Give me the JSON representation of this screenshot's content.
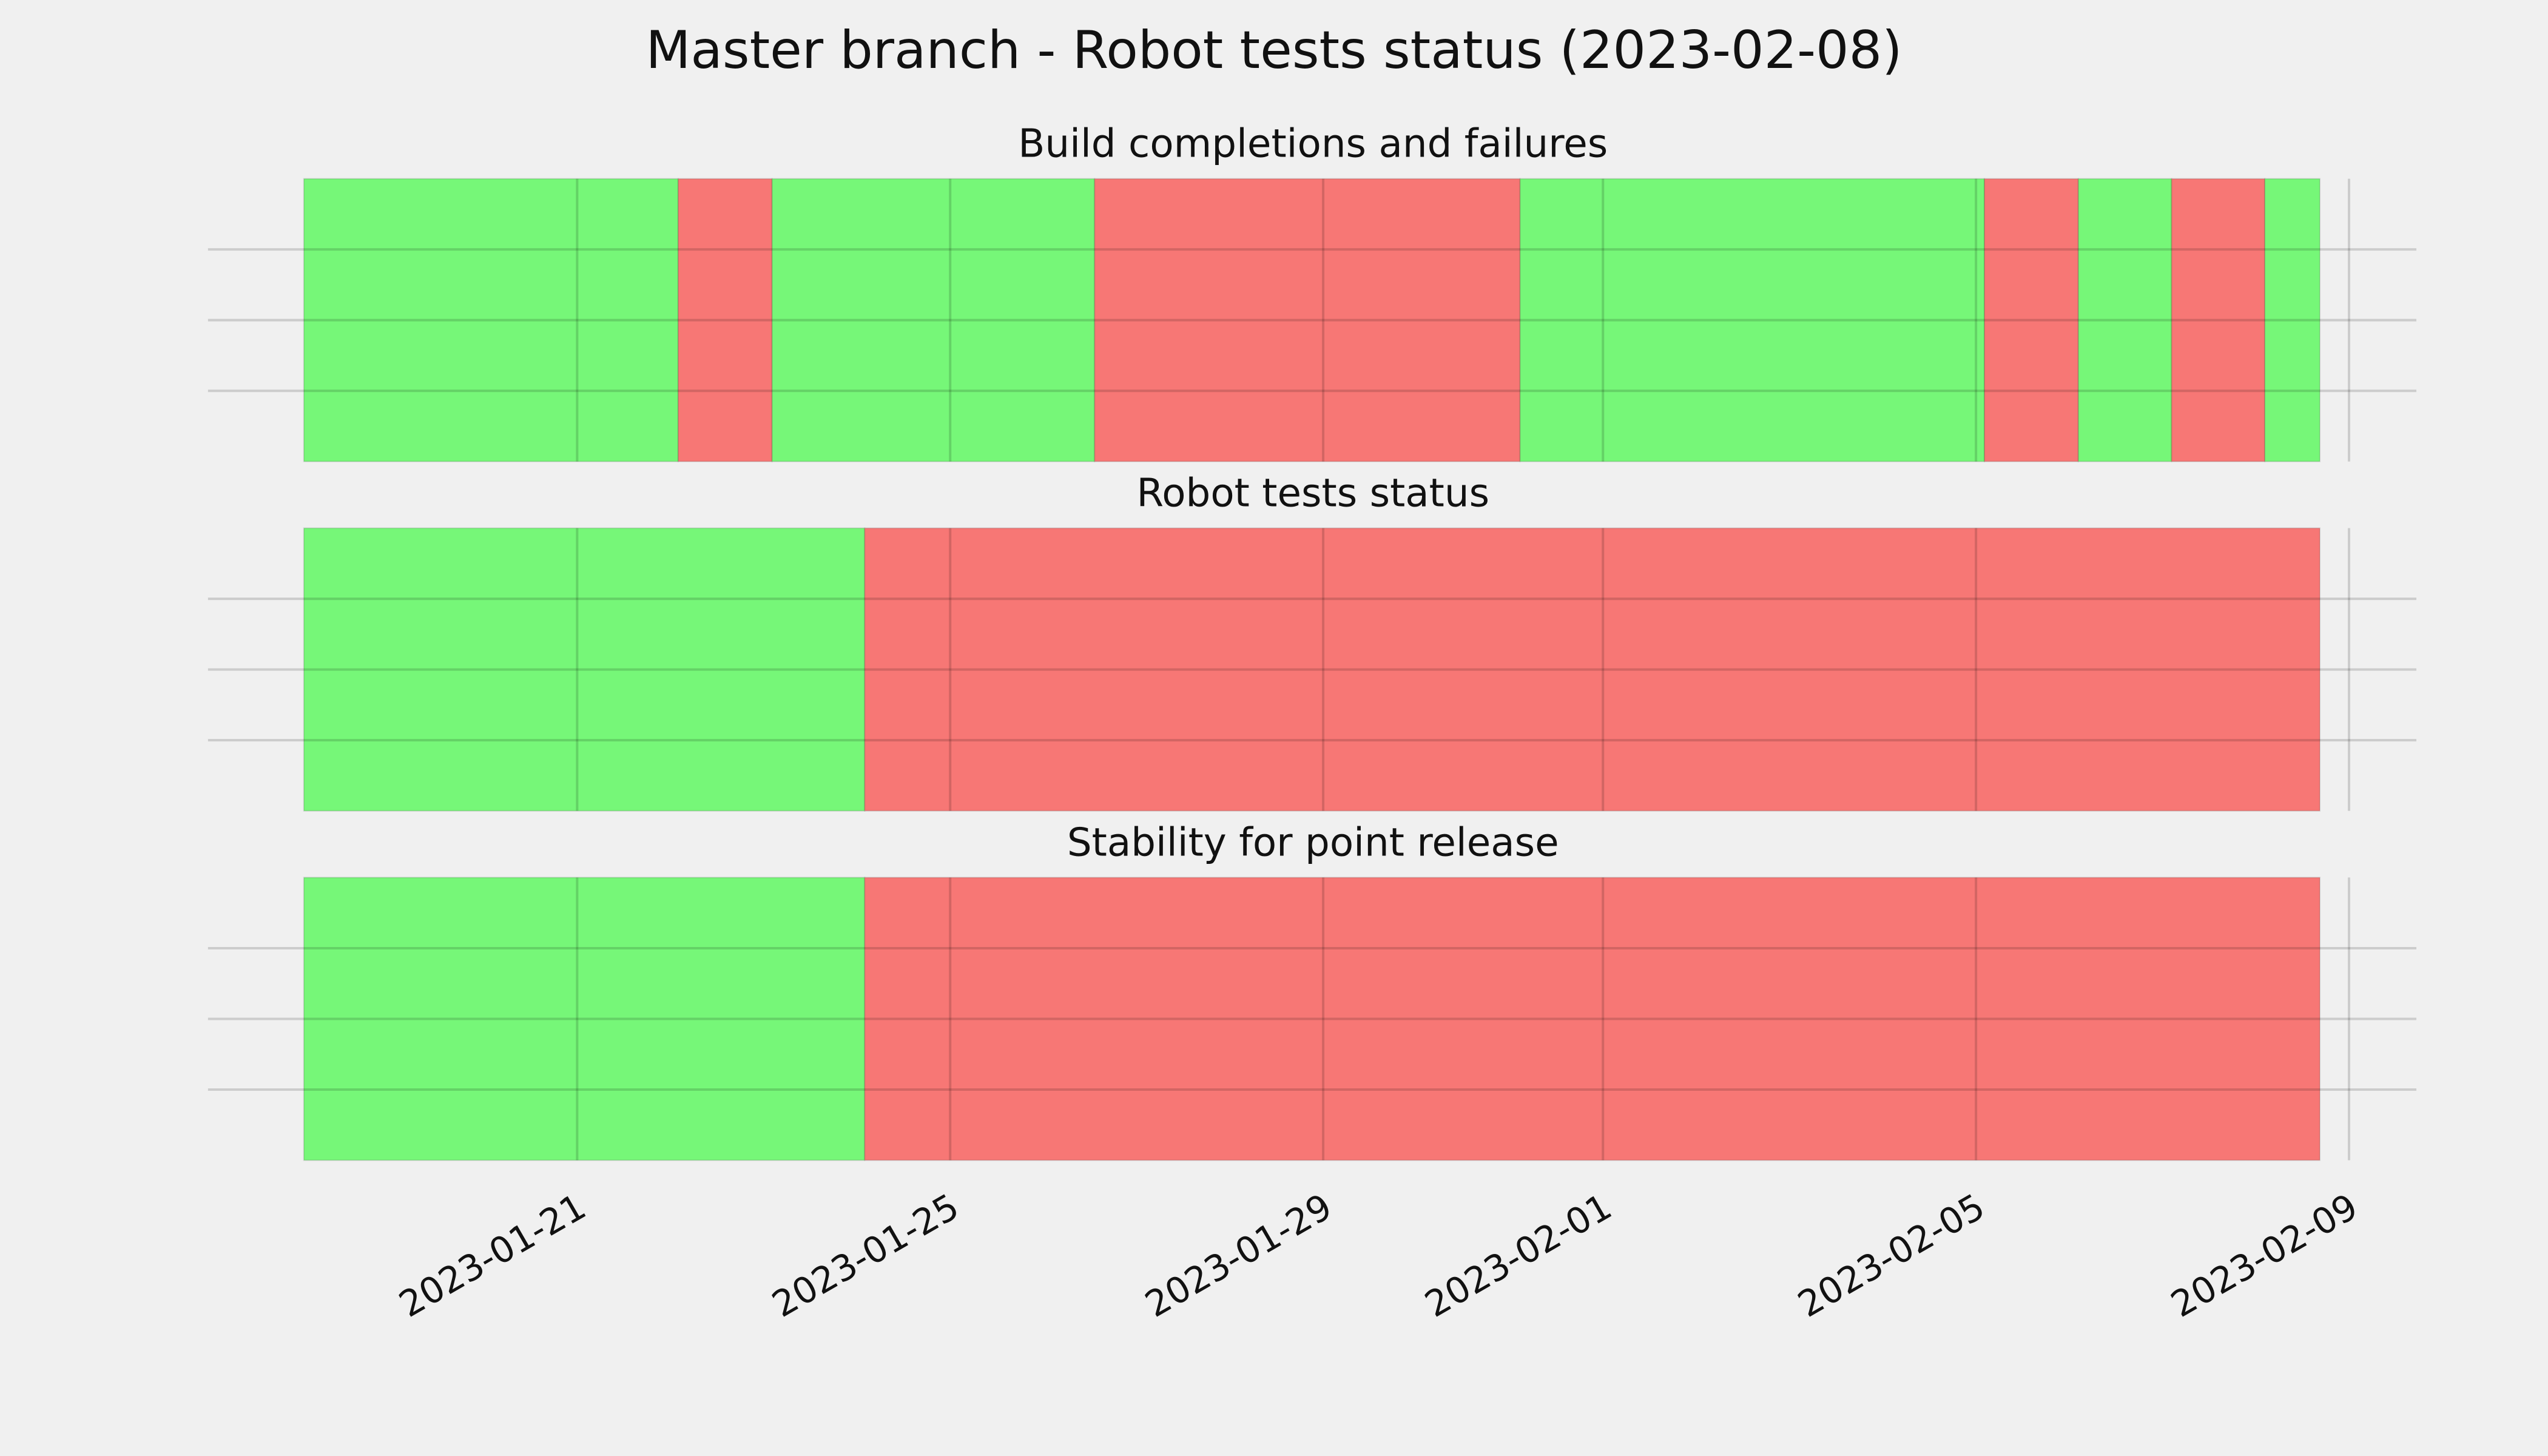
{
  "chart_data": {
    "type": "timeline",
    "title": "Master branch - Robot tests status (2023-02-08)",
    "xlim": [
      "2023-01-17T01:00",
      "2023-02-09T17:20"
    ],
    "xticks": [
      "2023-01-21",
      "2023-01-25",
      "2023-01-29",
      "2023-02-01",
      "2023-02-05",
      "2023-02-09"
    ],
    "ylim": [
      0,
      1
    ],
    "yticks": [
      0.25,
      0.5,
      0.75
    ],
    "grid": true,
    "panels": [
      {
        "title": "Build completions and failures",
        "segments": [
          {
            "start": "2023-01-18T01:40",
            "end": "2023-01-22T02:00",
            "color": "#76f778"
          },
          {
            "start": "2023-01-22T02:00",
            "end": "2023-01-23T02:10",
            "color": "#f77775"
          },
          {
            "start": "2023-01-23T02:10",
            "end": "2023-01-26T13:10",
            "color": "#76f778"
          },
          {
            "start": "2023-01-26T13:10",
            "end": "2023-01-31T02:40",
            "color": "#f77775"
          },
          {
            "start": "2023-01-31T02:40",
            "end": "2023-02-05T02:10",
            "color": "#76f778"
          },
          {
            "start": "2023-02-05T02:10",
            "end": "2023-02-06T02:20",
            "color": "#f77775"
          },
          {
            "start": "2023-02-06T02:20",
            "end": "2023-02-07T02:20",
            "color": "#76f778"
          },
          {
            "start": "2023-02-07T02:20",
            "end": "2023-02-08T02:20",
            "color": "#f77775"
          },
          {
            "start": "2023-02-08T02:20",
            "end": "2023-02-08T16:30",
            "color": "#76f778"
          }
        ]
      },
      {
        "title": "Robot tests status",
        "segments": [
          {
            "start": "2023-01-18T01:40",
            "end": "2023-01-24T02:00",
            "color": "#76f778"
          },
          {
            "start": "2023-01-24T02:00",
            "end": "2023-02-08T16:30",
            "color": "#f77775"
          }
        ]
      },
      {
        "title": "Stability for point release",
        "segments": [
          {
            "start": "2023-01-18T01:40",
            "end": "2023-01-24T02:00",
            "color": "#76f778"
          },
          {
            "start": "2023-01-24T02:00",
            "end": "2023-02-08T16:30",
            "color": "#f77775"
          }
        ]
      }
    ]
  }
}
